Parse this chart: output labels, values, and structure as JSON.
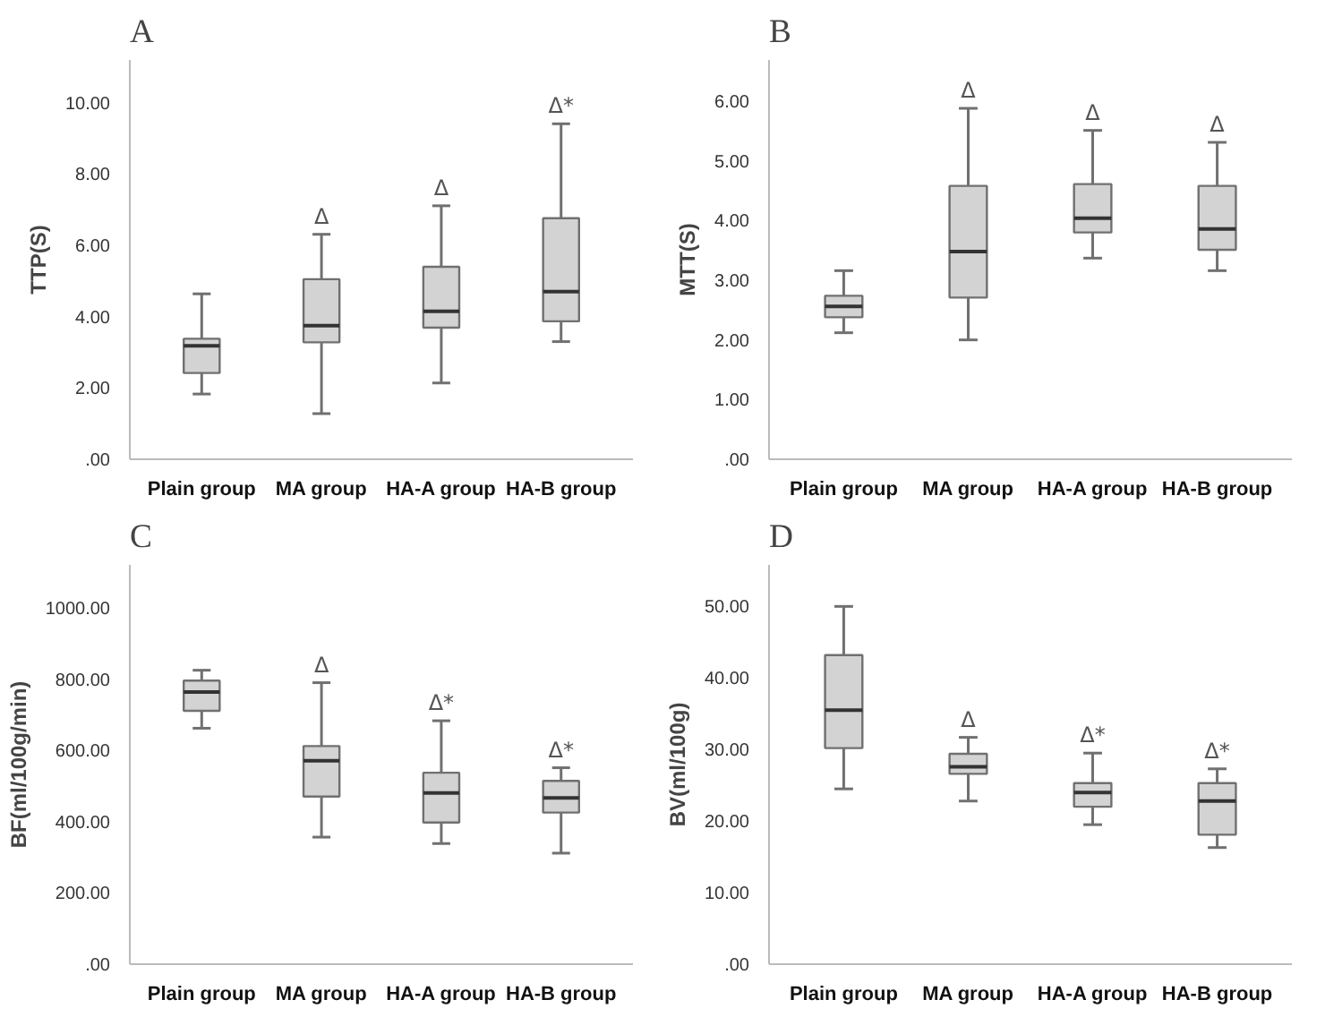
{
  "chart_data": [
    {
      "type": "box",
      "title": "A",
      "ylabel": "TTP(S)",
      "categories": [
        "Plain group",
        "MA group",
        "HA-A group",
        "HA-B group"
      ],
      "color": "#d3d3d3",
      "boxes": [
        {
          "low": 1.83,
          "q1": 2.42,
          "median": 3.18,
          "q3": 3.38,
          "high": 4.64
        },
        {
          "low": 1.28,
          "q1": 3.28,
          "median": 3.75,
          "q3": 5.05,
          "high": 6.31
        },
        {
          "low": 2.14,
          "q1": 3.69,
          "median": 4.15,
          "q3": 5.4,
          "high": 7.11
        },
        {
          "low": 3.3,
          "q1": 3.87,
          "median": 4.7,
          "q3": 6.76,
          "high": 9.41
        }
      ],
      "ylim": [
        0,
        11.2
      ],
      "yticks": [
        {
          "value": 0,
          "label": ".00"
        },
        {
          "value": 2,
          "label": "2.00"
        },
        {
          "value": 4,
          "label": "4.00"
        },
        {
          "value": 6,
          "label": "6.00"
        },
        {
          "value": 8,
          "label": "8.00"
        },
        {
          "value": 10,
          "label": "10.00"
        }
      ],
      "annotations": [
        "Δ",
        "Δ",
        "Δ*"
      ]
    },
    {
      "type": "box",
      "title": "B",
      "ylabel": "MTT(S)",
      "categories": [
        "Plain group",
        "MA group",
        "HA-A group",
        "HA-B group"
      ],
      "color": "#d3d3d3",
      "boxes": [
        {
          "low": 2.12,
          "q1": 2.38,
          "median": 2.56,
          "q3": 2.74,
          "high": 3.16
        },
        {
          "low": 2.0,
          "q1": 2.71,
          "median": 3.48,
          "q3": 4.58,
          "high": 5.88
        },
        {
          "low": 3.37,
          "q1": 3.8,
          "median": 4.04,
          "q3": 4.61,
          "high": 5.51
        },
        {
          "low": 3.16,
          "q1": 3.51,
          "median": 3.86,
          "q3": 4.58,
          "high": 5.31
        }
      ],
      "ylim": [
        0,
        6.69
      ],
      "yticks": [
        {
          "value": 0,
          "label": ".00"
        },
        {
          "value": 1,
          "label": "1.00"
        },
        {
          "value": 2,
          "label": "2.00"
        },
        {
          "value": 3,
          "label": "3.00"
        },
        {
          "value": 4,
          "label": "4.00"
        },
        {
          "value": 5,
          "label": "5.00"
        },
        {
          "value": 6,
          "label": "6.00"
        }
      ],
      "annotations": [
        "Δ",
        "Δ",
        "Δ"
      ]
    },
    {
      "type": "box",
      "title": "C",
      "ylabel": "BF(ml/100g/min)",
      "categories": [
        "Plain group",
        "MA group",
        "HA-A group",
        "HA-B group"
      ],
      "color": "#d3d3d3",
      "boxes": [
        {
          "low": 663,
          "q1": 712,
          "median": 765,
          "q3": 797,
          "high": 826
        },
        {
          "low": 357,
          "q1": 471,
          "median": 572,
          "q3": 613,
          "high": 791
        },
        {
          "low": 339,
          "q1": 398,
          "median": 481,
          "q3": 538,
          "high": 684
        },
        {
          "low": 312,
          "q1": 426,
          "median": 467,
          "q3": 515,
          "high": 552
        }
      ],
      "ylim": [
        0,
        1122
      ],
      "yticks": [
        {
          "value": 0,
          "label": ".00"
        },
        {
          "value": 200,
          "label": "200.00"
        },
        {
          "value": 400,
          "label": "400.00"
        },
        {
          "value": 600,
          "label": "600.00"
        },
        {
          "value": 800,
          "label": "800.00"
        },
        {
          "value": 1000,
          "label": "1000.00"
        }
      ],
      "annotations": [
        "Δ",
        "Δ*",
        "Δ*"
      ]
    },
    {
      "type": "box",
      "title": "D",
      "ylabel": "BV(ml/100g)",
      "categories": [
        "Plain group",
        "MA group",
        "HA-A group",
        "HA-B group"
      ],
      "color": "#d3d3d3",
      "boxes": [
        {
          "low": 24.5,
          "q1": 30.2,
          "median": 35.5,
          "q3": 43.2,
          "high": 50.0
        },
        {
          "low": 22.8,
          "q1": 26.6,
          "median": 27.6,
          "q3": 29.4,
          "high": 31.7
        },
        {
          "low": 19.5,
          "q1": 22.0,
          "median": 24.0,
          "q3": 25.3,
          "high": 29.5
        },
        {
          "low": 16.3,
          "q1": 18.1,
          "median": 22.8,
          "q3": 25.3,
          "high": 27.3
        }
      ],
      "ylim": [
        0,
        55.8
      ],
      "yticks": [
        {
          "value": 0,
          "label": ".00"
        },
        {
          "value": 10,
          "label": "10.00"
        },
        {
          "value": 20,
          "label": "20.00"
        },
        {
          "value": 30,
          "label": "30.00"
        },
        {
          "value": 40,
          "label": "40.00"
        },
        {
          "value": 50,
          "label": "50.00"
        }
      ],
      "annotations": [
        "Δ",
        "Δ*",
        "Δ*"
      ]
    }
  ]
}
